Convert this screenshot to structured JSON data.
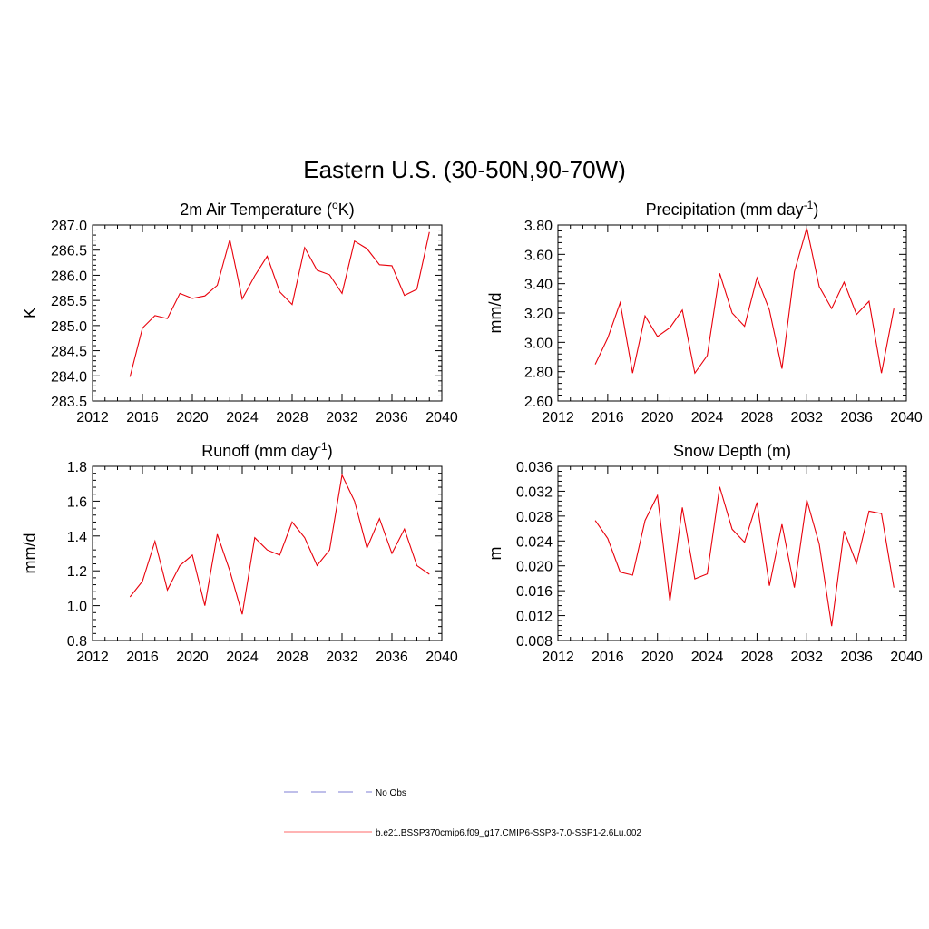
{
  "figure": {
    "title": "Eastern U.S. (30-50N,90-70W)"
  },
  "chart_data": [
    {
      "type": "line",
      "title": "2m Air Temperature (",
      "title_sup": "o",
      "title_tail": "K)",
      "ylabel": "K",
      "xlim": [
        2012,
        2040
      ],
      "ylim": [
        283.5,
        287.0
      ],
      "x_ticks": [
        "2012",
        "2016",
        "2020",
        "2024",
        "2028",
        "2032",
        "2036",
        "2040"
      ],
      "y_ticks": [
        "283.5",
        "284.0",
        "284.5",
        "285.0",
        "285.5",
        "286.0",
        "286.5",
        "287.0"
      ],
      "x": [
        2015,
        2016,
        2017,
        2018,
        2019,
        2020,
        2021,
        2022,
        2023,
        2024,
        2025,
        2026,
        2027,
        2028,
        2029,
        2030,
        2031,
        2032,
        2033,
        2034,
        2035,
        2036,
        2037,
        2038,
        2039
      ],
      "series": [
        {
          "color": "#e8000b",
          "values": [
            283.98,
            284.95,
            285.2,
            285.14,
            285.64,
            285.54,
            285.59,
            285.8,
            286.71,
            285.53,
            285.99,
            286.38,
            285.67,
            285.42,
            286.55,
            286.1,
            286.01,
            285.64,
            286.68,
            286.53,
            286.21,
            286.19,
            285.6,
            285.72,
            286.86
          ]
        }
      ]
    },
    {
      "type": "line",
      "title": "Precipitation (mm day",
      "title_sup": "-1",
      "title_tail": ")",
      "ylabel": "mm/d",
      "xlim": [
        2012,
        2040
      ],
      "ylim": [
        2.6,
        3.8
      ],
      "x_ticks": [
        "2012",
        "2016",
        "2020",
        "2024",
        "2028",
        "2032",
        "2036",
        "2040"
      ],
      "y_ticks": [
        "2.60",
        "2.80",
        "3.00",
        "3.20",
        "3.40",
        "3.60",
        "3.80"
      ],
      "x": [
        2015,
        2016,
        2017,
        2018,
        2019,
        2020,
        2021,
        2022,
        2023,
        2024,
        2025,
        2026,
        2027,
        2028,
        2029,
        2030,
        2031,
        2032,
        2033,
        2034,
        2035,
        2036,
        2037,
        2038,
        2039
      ],
      "series": [
        {
          "color": "#e8000b",
          "values": [
            2.85,
            3.03,
            3.27,
            2.79,
            3.18,
            3.04,
            3.1,
            3.22,
            2.79,
            2.91,
            3.47,
            3.2,
            3.11,
            3.44,
            3.22,
            2.82,
            3.48,
            3.78,
            3.38,
            3.23,
            3.41,
            3.19,
            3.28,
            2.79,
            3.23
          ]
        }
      ]
    },
    {
      "type": "line",
      "title": "Runoff (mm day",
      "title_sup": "-1",
      "title_tail": ")",
      "ylabel": "mm/d",
      "xlim": [
        2012,
        2040
      ],
      "ylim": [
        0.8,
        1.8
      ],
      "x_ticks": [
        "2012",
        "2016",
        "2020",
        "2024",
        "2028",
        "2032",
        "2036",
        "2040"
      ],
      "y_ticks": [
        "0.8",
        "1.0",
        "1.2",
        "1.4",
        "1.6",
        "1.8"
      ],
      "x": [
        2015,
        2016,
        2017,
        2018,
        2019,
        2020,
        2021,
        2022,
        2023,
        2024,
        2025,
        2026,
        2027,
        2028,
        2029,
        2030,
        2031,
        2032,
        2033,
        2034,
        2035,
        2036,
        2037,
        2038,
        2039
      ],
      "series": [
        {
          "color": "#e8000b",
          "values": [
            1.05,
            1.14,
            1.37,
            1.09,
            1.23,
            1.29,
            1.0,
            1.41,
            1.2,
            0.95,
            1.39,
            1.32,
            1.29,
            1.48,
            1.39,
            1.23,
            1.32,
            1.75,
            1.6,
            1.33,
            1.5,
            1.3,
            1.44,
            1.23,
            1.18
          ]
        }
      ]
    },
    {
      "type": "line",
      "title": "Snow Depth (m)",
      "title_sup": "",
      "title_tail": "",
      "ylabel": "m",
      "xlim": [
        2012,
        2040
      ],
      "ylim": [
        0.008,
        0.036
      ],
      "x_ticks": [
        "2012",
        "2016",
        "2020",
        "2024",
        "2028",
        "2032",
        "2036",
        "2040"
      ],
      "y_ticks": [
        "0.008",
        "0.012",
        "0.016",
        "0.020",
        "0.024",
        "0.028",
        "0.032",
        "0.036"
      ],
      "x": [
        2015,
        2016,
        2017,
        2018,
        2019,
        2020,
        2021,
        2022,
        2023,
        2024,
        2025,
        2026,
        2027,
        2028,
        2029,
        2030,
        2031,
        2032,
        2033,
        2034,
        2035,
        2036,
        2037,
        2038,
        2039
      ],
      "series": [
        {
          "color": "#e8000b",
          "values": [
            0.0273,
            0.0244,
            0.019,
            0.0185,
            0.0273,
            0.0313,
            0.0143,
            0.0294,
            0.0179,
            0.0187,
            0.0327,
            0.0259,
            0.0238,
            0.0302,
            0.0168,
            0.0267,
            0.0165,
            0.0306,
            0.0235,
            0.0103,
            0.0256,
            0.0204,
            0.0288,
            0.0284,
            0.0165
          ]
        }
      ]
    }
  ],
  "legend": {
    "items": [
      {
        "label": "No Obs",
        "color": "#9999dd",
        "style": "dashed"
      },
      {
        "label": "b.e21.BSSP370cmip6.f09_g17.CMIP6-SSP3-7.0-SSP1-2.6Lu.002",
        "color": "#ff8888",
        "style": "solid"
      }
    ]
  }
}
